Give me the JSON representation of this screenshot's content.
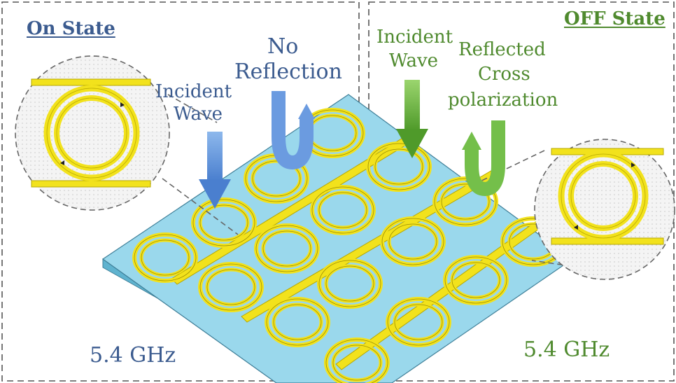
{
  "on_panel": {
    "title": "On State",
    "incident_line1": "Incident",
    "incident_line2": "Wave",
    "reflection_line1": "No",
    "reflection_line2": "Reflection",
    "frequency": "5.4 GHz"
  },
  "off_panel": {
    "title": "OFF State",
    "incident_line1": "Incident",
    "incident_line2": "Wave",
    "reflected_line1": "Reflected",
    "reflected_line2": "Cross",
    "reflected_line3": "polarization",
    "frequency": "5.4 GHz"
  },
  "colors": {
    "on_text": "#3b5b8f",
    "off_text": "#4f8a2e",
    "substrate": "#8fd3e8",
    "metal": "#f2e21c",
    "blue_arrow": "#5b8fd6",
    "green_arrow": "#6bb543"
  }
}
